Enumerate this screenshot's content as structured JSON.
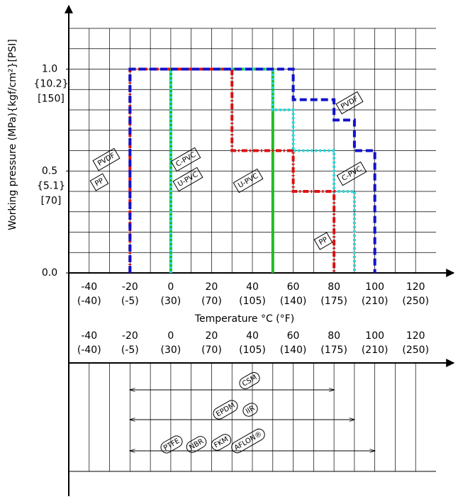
{
  "chart_data": [
    {
      "type": "step-line",
      "y_label": "Working pressure (MPa){kgf/cm²}[PSI]",
      "x_label": "Temperature °C (°F)",
      "xlim": [
        -50,
        130
      ],
      "ylim": [
        0,
        1.2
      ],
      "xticks": [
        {
          "value": -40,
          "label": "-40",
          "f_label": "(-40)"
        },
        {
          "value": -20,
          "label": "-20",
          "f_label": "(-5)"
        },
        {
          "value": 0,
          "label": "0",
          "f_label": "(30)"
        },
        {
          "value": 20,
          "label": "20",
          "f_label": "(70)"
        },
        {
          "value": 40,
          "label": "40",
          "f_label": "(105)"
        },
        {
          "value": 60,
          "label": "60",
          "f_label": "(140)"
        },
        {
          "value": 80,
          "label": "80",
          "f_label": "(175)"
        },
        {
          "value": 100,
          "label": "100",
          "f_label": "(210)"
        },
        {
          "value": 120,
          "label": "120",
          "f_label": "(250)"
        }
      ],
      "yticks": [
        {
          "value": 0,
          "label": "0.0"
        },
        {
          "value": 0.5,
          "label": "0.5",
          "kgf_label": "{5.1}",
          "psi_label": "[70]"
        },
        {
          "value": 1,
          "label": "1.0",
          "kgf_label": "{10.2}",
          "psi_label": "[150]"
        }
      ],
      "grid": true,
      "grid_x": [
        -40,
        -30,
        -20,
        -10,
        0,
        10,
        20,
        30,
        40,
        50,
        60,
        70,
        80,
        90,
        100,
        110,
        120
      ],
      "grid_y": [
        0.1,
        0.2,
        0.3,
        0.4,
        0.5,
        0.6,
        0.7,
        0.8,
        0.9,
        1.0,
        1.1,
        1.2
      ],
      "series": [
        {
          "name": "U-PVC",
          "color": "#22bb22",
          "dash": "solid",
          "x": [
            0,
            0,
            50,
            50
          ],
          "values": [
            0,
            1,
            1,
            0
          ]
        },
        {
          "name": "C-PVC",
          "color": "#22dddd",
          "dash": "dotted",
          "x": [
            0,
            0,
            50,
            50,
            60,
            60,
            80,
            80,
            90,
            90
          ],
          "values": [
            0,
            1,
            1,
            0.8,
            0.8,
            0.6,
            0.6,
            0.4,
            0.4,
            0
          ]
        },
        {
          "name": "PP",
          "color": "#dd1111",
          "dash": "dash-dot",
          "x": [
            -20,
            -20,
            30,
            30,
            60,
            60,
            80,
            80
          ],
          "values": [
            0,
            1,
            1,
            0.6,
            0.6,
            0.4,
            0.4,
            0
          ]
        },
        {
          "name": "PVDF",
          "color": "#1111cc",
          "dash": "dashed",
          "x": [
            -20,
            -20,
            60,
            60,
            80,
            80,
            90,
            90,
            100,
            100
          ],
          "values": [
            0,
            1,
            1,
            0.85,
            0.85,
            0.75,
            0.75,
            0.6,
            0.6,
            0
          ]
        }
      ]
    },
    {
      "type": "range",
      "xlim": [
        -50,
        130
      ],
      "xticks": [
        {
          "value": -40,
          "label": "-40",
          "f_label": "(-40)"
        },
        {
          "value": -20,
          "label": "-20",
          "f_label": "(-5)"
        },
        {
          "value": 0,
          "label": "0",
          "f_label": "(30)"
        },
        {
          "value": 20,
          "label": "20",
          "f_label": "(70)"
        },
        {
          "value": 40,
          "label": "40",
          "f_label": "(105)"
        },
        {
          "value": 60,
          "label": "60",
          "f_label": "(140)"
        },
        {
          "value": 80,
          "label": "80",
          "f_label": "(175)"
        },
        {
          "value": 100,
          "label": "100",
          "f_label": "(210)"
        },
        {
          "value": 120,
          "label": "120",
          "f_label": "(250)"
        }
      ],
      "grid_x": [
        -40,
        -30,
        -20,
        -10,
        0,
        10,
        20,
        30,
        40,
        50,
        60,
        70,
        80,
        90,
        100,
        110,
        120
      ],
      "series": [
        {
          "names": [
            "CSM"
          ],
          "values": [
            -20,
            80
          ]
        },
        {
          "names": [
            "EPDM",
            "IIR"
          ],
          "values": [
            -20,
            90
          ]
        },
        {
          "names": [
            "PTFE",
            "NBR",
            "FKM",
            "AFLON®"
          ],
          "values": [
            -20,
            100
          ]
        }
      ]
    }
  ]
}
